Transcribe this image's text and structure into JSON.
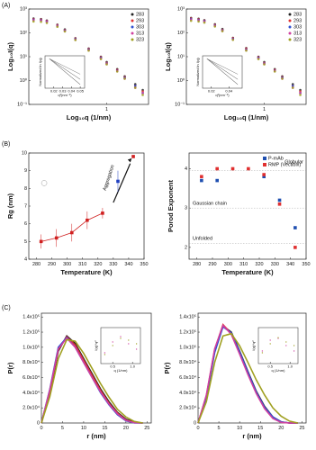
{
  "figure": {
    "panel_labels": [
      "(A)",
      "(B)",
      "(C)"
    ]
  },
  "chart_data": [
    {
      "type": "scatter",
      "x_label": "Log₁₀q (1/nm)",
      "y_label": "Log₁₀I(q)",
      "xscale": "log",
      "yscale": "log",
      "xlim": [
        0.05,
        5
      ],
      "xticks": [
        1
      ],
      "ylim": [
        0.1,
        1000
      ],
      "yticks": [
        {
          "value": 0.1,
          "label": "10⁻¹"
        },
        {
          "value": 1,
          "label": "10⁰"
        },
        {
          "value": 10,
          "label": "10¹"
        },
        {
          "value": 100,
          "label": "10²"
        },
        {
          "value": 1000,
          "label": "10³"
        }
      ],
      "legend": "upper right",
      "x": [
        0.06,
        0.08,
        0.1,
        0.15,
        0.2,
        0.3,
        0.5,
        0.8,
        1,
        1.5,
        2,
        3,
        4
      ],
      "series": [
        {
          "name": "283",
          "color": "#222222",
          "values": [
            400,
            380,
            330,
            220,
            140,
            60,
            22,
            10,
            6,
            3,
            1.5,
            0.7,
            0.4
          ]
        },
        {
          "name": "293",
          "color": "#e03030",
          "values": [
            380,
            360,
            320,
            210,
            130,
            58,
            21,
            9.5,
            5.5,
            2.8,
            1.4,
            0.6,
            0.35
          ]
        },
        {
          "name": "303",
          "color": "#3050d0",
          "values": [
            360,
            340,
            300,
            200,
            125,
            55,
            20,
            9,
            5.2,
            2.6,
            1.3,
            0.6,
            0.3
          ]
        },
        {
          "name": "313",
          "color": "#d040a0",
          "values": [
            340,
            330,
            290,
            195,
            120,
            52,
            19,
            8.5,
            5,
            2.5,
            1.2,
            0.5,
            0.3
          ]
        },
        {
          "name": "323",
          "color": "#a0a020",
          "values": [
            300,
            290,
            260,
            180,
            115,
            50,
            18,
            8,
            4.8,
            2.4,
            1.2,
            0.5,
            0.25
          ]
        }
      ]
    },
    {
      "type": "line",
      "x_label": "q²(nm⁻²)",
      "y_label": "Normalized ln I(q)",
      "xlim": [
        0.01,
        0.055
      ],
      "xticks": [
        0.02,
        0.03,
        0.04,
        0.05
      ],
      "ylim": [
        -2,
        0.2
      ],
      "x": [
        0.015,
        0.02,
        0.03,
        0.04,
        0.05
      ],
      "series": [
        {
          "color": "#333333",
          "values": [
            0,
            -0.25,
            -0.75,
            -1.25,
            -1.75
          ]
        },
        {
          "color": "#555555",
          "values": [
            0,
            -0.2,
            -0.6,
            -1.0,
            -1.4
          ]
        },
        {
          "color": "#777777",
          "values": [
            0,
            -0.15,
            -0.45,
            -0.75,
            -1.05
          ]
        }
      ]
    },
    {
      "type": "scatter",
      "x_label": "Log₁₀q (1/nm)",
      "y_label": "Log₁₀I(q)",
      "xscale": "log",
      "yscale": "log",
      "xlim": [
        0.05,
        5
      ],
      "xticks": [
        1
      ],
      "ylim": [
        0.1,
        1000
      ],
      "yticks": [
        {
          "value": 0.1,
          "label": "10⁻¹"
        },
        {
          "value": 1,
          "label": "10⁰"
        },
        {
          "value": 10,
          "label": "10¹"
        },
        {
          "value": 100,
          "label": "10²"
        },
        {
          "value": 1000,
          "label": "10³"
        }
      ],
      "legend": "upper right",
      "x": [
        0.06,
        0.08,
        0.1,
        0.15,
        0.2,
        0.3,
        0.5,
        0.8,
        1,
        1.5,
        2,
        3,
        4
      ],
      "series": [
        {
          "name": "283",
          "color": "#222222",
          "values": [
            420,
            390,
            340,
            230,
            145,
            62,
            23,
            10,
            6,
            3,
            1.5,
            0.7,
            0.4
          ]
        },
        {
          "name": "293",
          "color": "#e03030",
          "values": [
            400,
            370,
            325,
            215,
            135,
            60,
            22,
            9.5,
            5.5,
            2.8,
            1.4,
            0.6,
            0.35
          ]
        },
        {
          "name": "303",
          "color": "#3050d0",
          "values": [
            380,
            350,
            310,
            205,
            128,
            56,
            20,
            9,
            5.2,
            2.6,
            1.3,
            0.6,
            0.3
          ]
        },
        {
          "name": "313",
          "color": "#d040a0",
          "values": [
            360,
            335,
            295,
            198,
            122,
            53,
            19,
            8.5,
            5,
            2.5,
            1.2,
            0.5,
            0.3
          ]
        },
        {
          "name": "323",
          "color": "#a0a020",
          "values": [
            320,
            300,
            270,
            185,
            118,
            51,
            18,
            8,
            4.8,
            2.4,
            1.2,
            0.5,
            0.25
          ]
        }
      ]
    },
    {
      "type": "line",
      "x_label": "q²(nm⁻²)",
      "y_label": "Normalized ln I(q)",
      "xlim": [
        0.01,
        0.055
      ],
      "xticks": [
        0.02,
        0.04
      ],
      "ylim": [
        -2,
        0.2
      ],
      "x": [
        0.015,
        0.02,
        0.03,
        0.04,
        0.05
      ],
      "series": [
        {
          "color": "#333333",
          "values": [
            0,
            -0.25,
            -0.75,
            -1.25,
            -1.75
          ]
        },
        {
          "color": "#555555",
          "values": [
            0,
            -0.2,
            -0.6,
            -1.0,
            -1.4
          ]
        },
        {
          "color": "#777777",
          "values": [
            0,
            -0.15,
            -0.45,
            -0.75,
            -1.05
          ]
        }
      ]
    },
    {
      "type": "scatter",
      "x_label": "Temperature (K)",
      "y_label": "Rg (nm)",
      "xlim": [
        275,
        350
      ],
      "xticks": [
        280,
        290,
        300,
        310,
        320,
        330,
        340,
        350
      ],
      "ylim": [
        4,
        10
      ],
      "yticks": [
        4,
        5,
        6,
        7,
        8,
        9,
        10
      ],
      "annotations": [
        "Aggregation"
      ],
      "series": [
        {
          "color": "#d02020",
          "connect": true,
          "marker": "square",
          "x": [
            283,
            293,
            303,
            313,
            323
          ],
          "values": [
            5.0,
            5.2,
            5.5,
            6.2,
            6.6
          ],
          "errors": [
            0.4,
            0.5,
            0.5,
            0.5,
            0.3
          ]
        },
        {
          "color": "#d02020",
          "marker": "square",
          "x": [
            343
          ],
          "values": [
            9.8
          ]
        },
        {
          "color": "#2040c0",
          "marker": "square",
          "x": [
            333
          ],
          "values": [
            8.4
          ],
          "errors": [
            0.6
          ]
        },
        {
          "color": "#999999",
          "marker": "open",
          "x": [
            285
          ],
          "values": [
            8.3
          ]
        }
      ]
    },
    {
      "type": "scatter",
      "x_label": "Temperature (K)",
      "y_label": "Porod Exponent",
      "xlim": [
        275,
        350
      ],
      "xticks": [
        280,
        290,
        300,
        310,
        320,
        330,
        340,
        350
      ],
      "ylim": [
        1.7,
        4.4
      ],
      "yticks": [
        2,
        3,
        4
      ],
      "legend": "upper right",
      "annotations": [
        "Globular",
        "Gaussian chain",
        "Unfolded"
      ],
      "series": [
        {
          "name": "P-mAb",
          "color": "#1f4fb0",
          "marker": "square",
          "x": [
            283,
            293,
            323,
            333,
            343
          ],
          "values": [
            3.7,
            3.7,
            3.8,
            3.2,
            2.5
          ]
        },
        {
          "name": "RMP (Vectibix)",
          "color": "#e03030",
          "marker": "square",
          "x": [
            283,
            293,
            303,
            313,
            323,
            333,
            343
          ],
          "values": [
            3.8,
            4.0,
            4.0,
            4.0,
            3.85,
            3.1,
            2.0
          ]
        }
      ]
    },
    {
      "type": "line",
      "x_label": "r (nm)",
      "y_label": "P(r)",
      "xlim": [
        0,
        26
      ],
      "xticks": [
        0,
        5,
        10,
        15,
        20,
        25
      ],
      "ylim": [
        0,
        145000
      ],
      "yticks": [
        0,
        {
          "value": 20000,
          "label": "2.0x10⁴"
        },
        {
          "value": 40000,
          "label": "4.0x10⁴"
        },
        {
          "value": 60000,
          "label": "6.0x10⁴"
        },
        {
          "value": 80000,
          "label": "8.0x10⁴"
        },
        {
          "value": 100000,
          "label": "1.0x10⁵"
        },
        {
          "value": 120000,
          "label": "1.2x10⁵"
        },
        {
          "value": 140000,
          "label": "1.4x10⁵"
        }
      ],
      "x": [
        0,
        2,
        4,
        6,
        8,
        10,
        12,
        14,
        16,
        18,
        20,
        22,
        24
      ],
      "series": [
        {
          "color": "#222222",
          "values": [
            0,
            40000,
            95000,
            115000,
            105000,
            85000,
            65000,
            45000,
            28000,
            14000,
            5000,
            1000,
            0
          ]
        },
        {
          "color": "#e03030",
          "values": [
            0,
            42000,
            97000,
            114000,
            103000,
            83000,
            63000,
            43000,
            26000,
            13000,
            4000,
            500,
            0
          ]
        },
        {
          "color": "#3050d0",
          "values": [
            0,
            45000,
            100000,
            113000,
            100000,
            80000,
            60000,
            40000,
            24000,
            11000,
            3000,
            0,
            0
          ]
        },
        {
          "color": "#d040a0",
          "values": [
            0,
            44000,
            98000,
            112000,
            100000,
            80000,
            60000,
            41000,
            25000,
            12000,
            3500,
            300,
            0
          ]
        },
        {
          "color": "#a0a020",
          "values": [
            0,
            35000,
            85000,
            110000,
            108000,
            92000,
            72000,
            52000,
            34000,
            18000,
            8000,
            2000,
            0
          ]
        }
      ]
    },
    {
      "type": "scatter",
      "x_label": "q (1/nm)",
      "y_label": "I(q)*q²",
      "xlim": [
        0.2,
        1.2
      ],
      "xticks": [
        0.5,
        {
          "value": 1,
          "label": "1.0"
        }
      ],
      "ylim": [
        0,
        1
      ],
      "x": [
        0.3,
        0.5,
        0.7,
        0.9,
        1.1
      ],
      "series": [
        {
          "color": "#d040a0",
          "values": [
            0.3,
            0.6,
            0.75,
            0.55,
            0.4
          ]
        },
        {
          "color": "#a0a020",
          "values": [
            0.25,
            0.5,
            0.7,
            0.65,
            0.55
          ]
        }
      ]
    },
    {
      "type": "line",
      "x_label": "r (nm)",
      "y_label": "P(r)",
      "xlim": [
        0,
        26
      ],
      "xticks": [
        0,
        5,
        10,
        15,
        20,
        25
      ],
      "ylim": [
        0,
        145000
      ],
      "yticks": [
        0,
        {
          "value": 20000,
          "label": "2.0x10⁴"
        },
        {
          "value": 40000,
          "label": "4.0x10⁴"
        },
        {
          "value": 60000,
          "label": "6.0x10⁴"
        },
        {
          "value": 80000,
          "label": "8.0x10⁴"
        },
        {
          "value": 100000,
          "label": "1.0x10⁵"
        },
        {
          "value": 120000,
          "label": "1.2x10⁵"
        },
        {
          "value": 140000,
          "label": "1.4x10⁵"
        }
      ],
      "x": [
        0,
        2,
        4,
        6,
        8,
        10,
        12,
        14,
        16,
        18,
        20,
        22,
        24
      ],
      "series": [
        {
          "color": "#222222",
          "values": [
            0,
            35000,
            95000,
            128000,
            120000,
            95000,
            68000,
            42000,
            22000,
            8000,
            1500,
            0,
            0
          ]
        },
        {
          "color": "#e03030",
          "values": [
            0,
            36000,
            97000,
            130000,
            118000,
            92000,
            65000,
            40000,
            20000,
            7000,
            1000,
            0,
            0
          ]
        },
        {
          "color": "#3050d0",
          "values": [
            0,
            34000,
            93000,
            127000,
            119000,
            94000,
            67000,
            41000,
            21000,
            8000,
            1500,
            0,
            0
          ]
        },
        {
          "color": "#d040a0",
          "values": [
            0,
            37000,
            98000,
            129000,
            117000,
            91000,
            64000,
            39000,
            19000,
            6000,
            800,
            0,
            0
          ]
        },
        {
          "color": "#a0a020",
          "values": [
            0,
            28000,
            80000,
            115000,
            118000,
            102000,
            80000,
            57000,
            37000,
            20000,
            9000,
            2500,
            0
          ]
        }
      ]
    },
    {
      "type": "scatter",
      "x_label": "q (1/nm)",
      "y_label": "I(q)*q²",
      "xlim": [
        0.2,
        1.2
      ],
      "xticks": [
        0.5,
        {
          "value": 1,
          "label": "1.0"
        }
      ],
      "ylim": [
        0,
        1
      ],
      "x": [
        0.3,
        0.5,
        0.7,
        0.9,
        1.1
      ],
      "series": [
        {
          "color": "#d040a0",
          "values": [
            0.35,
            0.65,
            0.7,
            0.5,
            0.35
          ]
        },
        {
          "color": "#a0a020",
          "values": [
            0.3,
            0.55,
            0.72,
            0.6,
            0.5
          ]
        }
      ]
    }
  ]
}
